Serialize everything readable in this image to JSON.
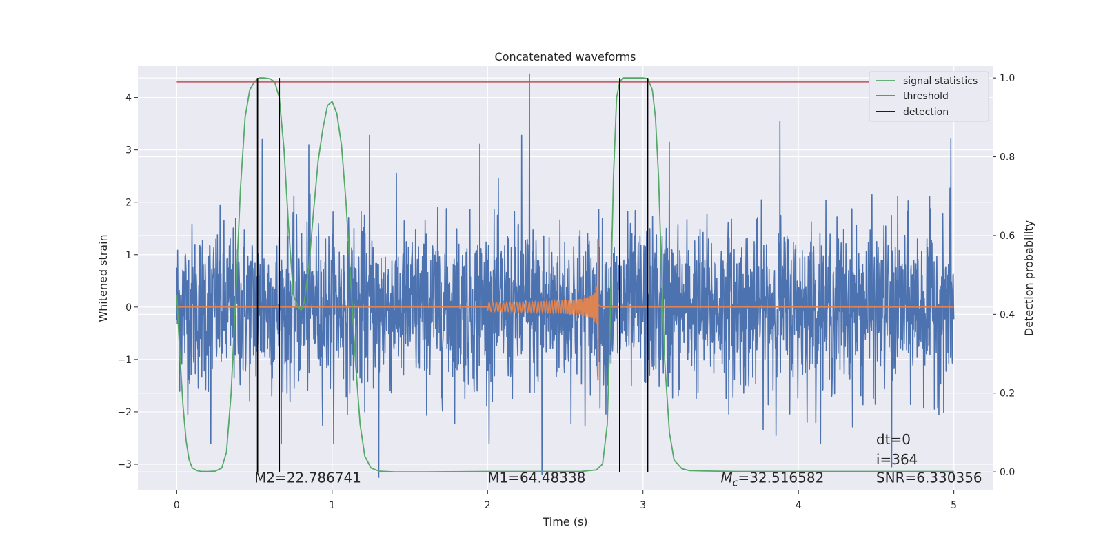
{
  "chart_data": {
    "type": "line",
    "title": "Concatenated waveforms",
    "xlabel": "Time (s)",
    "ylabel": "Whitened strain",
    "ylabel_right": "Detection probability",
    "xlim": [
      -0.25,
      5.25
    ],
    "ylim": [
      -3.5,
      4.6
    ],
    "ylim_right": [
      -0.047,
      1.03
    ],
    "x_ticks": [
      0,
      1,
      2,
      3,
      4,
      5
    ],
    "y_ticks": [
      -3,
      -2,
      -1,
      0,
      1,
      2,
      3,
      4
    ],
    "y_ticks_right": [
      0.0,
      0.2,
      0.4,
      0.6,
      0.8,
      1.0
    ],
    "x_tick_labels": [
      "0",
      "1",
      "2",
      "3",
      "4",
      "5"
    ],
    "y_tick_labels": [
      "−3",
      "−2",
      "−1",
      "0",
      "1",
      "2",
      "3",
      "4"
    ],
    "y_tick_labels_right": [
      "0.0",
      "0.2",
      "0.4",
      "0.6",
      "0.8",
      "1.0"
    ],
    "grid": true,
    "legend_position": "top-right",
    "series": [
      {
        "name": "whitened strain",
        "axis": "left",
        "color": "#4c72b0",
        "kind": "noise",
        "x_range": [
          0,
          5
        ],
        "typical_range": [
          -1.8,
          1.8
        ],
        "peak_values": [
          {
            "x": 2.27,
            "y": 4.45
          },
          {
            "x": 2.22,
            "y": 3.28
          },
          {
            "x": 3.88,
            "y": 3.55
          },
          {
            "x": 4.98,
            "y": 3.21
          },
          {
            "x": 1.24,
            "y": 3.28
          },
          {
            "x": 0.85,
            "y": 3.1
          },
          {
            "x": 3.17,
            "y": 3.15
          },
          {
            "x": 0.55,
            "y": 3.2
          },
          {
            "x": 1.95,
            "y": 3.11
          },
          {
            "x": 1.3,
            "y": -3.25
          },
          {
            "x": 2.35,
            "y": -3.2
          },
          {
            "x": 4.6,
            "y": -3.05
          },
          {
            "x": 0.22,
            "y": -2.6
          }
        ]
      },
      {
        "name": "waveform",
        "axis": "left",
        "color": "#dd8452",
        "kind": "chirp",
        "x_range": [
          0,
          5
        ],
        "chirp_start": 2.0,
        "merger": 2.71,
        "peak_amplitude": 1.3,
        "min_value": -1.4
      },
      {
        "name": "signal statistics",
        "axis": "right",
        "color": "#55a868",
        "x": [
          0,
          0.02,
          0.04,
          0.06,
          0.08,
          0.1,
          0.13,
          0.16,
          0.2,
          0.25,
          0.29,
          0.32,
          0.35,
          0.38,
          0.41,
          0.44,
          0.47,
          0.5,
          0.53,
          0.56,
          0.6,
          0.63,
          0.66,
          0.69,
          0.72,
          0.75,
          0.78,
          0.8,
          0.82,
          0.85,
          0.88,
          0.91,
          0.94,
          0.97,
          1.0,
          1.03,
          1.06,
          1.09,
          1.12,
          1.15,
          1.18,
          1.21,
          1.25,
          1.3,
          1.4,
          1.6,
          2.0,
          2.4,
          2.6,
          2.7,
          2.74,
          2.77,
          2.79,
          2.81,
          2.83,
          2.85,
          2.87,
          2.9,
          2.95,
          3.0,
          3.03,
          3.06,
          3.08,
          3.1,
          3.12,
          3.14,
          3.17,
          3.2,
          3.25,
          3.3,
          3.45,
          3.6,
          4.0,
          4.5,
          5.0
        ],
        "y": [
          0.45,
          0.3,
          0.17,
          0.08,
          0.03,
          0.01,
          0.003,
          0.001,
          0.001,
          0.002,
          0.01,
          0.05,
          0.2,
          0.45,
          0.72,
          0.9,
          0.97,
          0.99,
          1.0,
          1.0,
          0.998,
          0.99,
          0.95,
          0.82,
          0.62,
          0.45,
          0.42,
          0.41,
          0.43,
          0.52,
          0.66,
          0.79,
          0.87,
          0.93,
          0.94,
          0.91,
          0.83,
          0.68,
          0.48,
          0.28,
          0.12,
          0.04,
          0.01,
          0.002,
          0.0,
          0.0,
          0.001,
          0.001,
          0.001,
          0.005,
          0.02,
          0.12,
          0.4,
          0.75,
          0.95,
          0.99,
          1.0,
          1.0,
          1.0,
          1.0,
          0.998,
          0.97,
          0.9,
          0.75,
          0.5,
          0.28,
          0.1,
          0.03,
          0.008,
          0.003,
          0.002,
          0.001,
          0.001,
          0.001,
          0.001
        ]
      },
      {
        "name": "threshold",
        "axis": "right",
        "color": "#c44e52",
        "x": [
          0,
          5
        ],
        "y": [
          0.99,
          0.99
        ]
      }
    ],
    "detections": {
      "name": "detection",
      "color": "#000000",
      "x": [
        0.52,
        0.66,
        2.85,
        3.03
      ],
      "y_range_right": [
        0.0,
        1.0
      ]
    },
    "annotations": [
      {
        "id": "m2",
        "text": "M2=22.786741",
        "x": 0.5,
        "y": -3.35
      },
      {
        "id": "m1",
        "text": "M1=64.48338",
        "x": 2.0,
        "y": -3.35
      },
      {
        "id": "mc",
        "text": "=32.516582",
        "prefix": "M",
        "subscript": "c",
        "x": 3.5,
        "y": -3.35
      },
      {
        "id": "dt",
        "text": "dt=0",
        "x": 4.5,
        "y": -2.62
      },
      {
        "id": "i",
        "text": "i=364",
        "x": 4.5,
        "y": -3.0
      },
      {
        "id": "snr",
        "text": "SNR=6.330356",
        "x": 4.5,
        "y": -3.35
      }
    ],
    "legend": [
      "signal statistics",
      "threshold",
      "detection"
    ]
  },
  "colors": {
    "plot_background": "#eaeaf2",
    "grid": "#ffffff",
    "text": "#262626"
  }
}
